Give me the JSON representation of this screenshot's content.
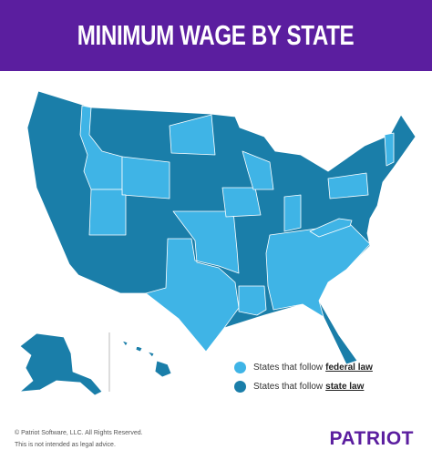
{
  "header": {
    "title": "MINIMUM WAGE BY STATE"
  },
  "legend": [
    {
      "prefix": "States that follow ",
      "emphasis": "federal law"
    },
    {
      "prefix": "States that follow ",
      "emphasis": "state law"
    }
  ],
  "footer": {
    "copyright": "© Patriot Software, LLC. All Rights Reserved.",
    "disclaimer": "This is not intended as legal advice.",
    "logo": "PATRIOT"
  }
}
